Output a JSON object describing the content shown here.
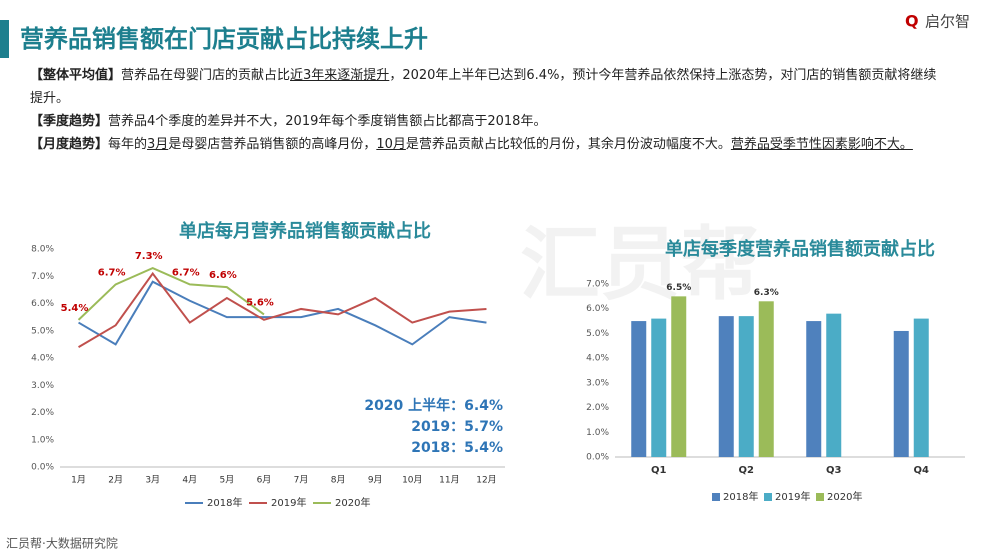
{
  "header": {
    "title": "营养品销售额在门店贡献占比持续上升",
    "logo": "启尔智",
    "watermark": "汇员帮",
    "footer": "汇员帮·大数据研究院"
  },
  "paragraphs": [
    {
      "label": "【整体平均值】",
      "segments": [
        {
          "text": "营养品在母婴门店的贡献占比"
        },
        {
          "text": "近3年来逐渐提升",
          "underline": true
        },
        {
          "text": "，2020年上半年已达到6.4%，预计今年营养品依然保持上涨态势，对门店的销售额贡献将继续提升。"
        }
      ]
    },
    {
      "label": "【季度趋势】",
      "segments": [
        {
          "text": "营养品4个季度的差异并不大，2019年每个季度销售额占比都高于2018年。"
        }
      ]
    },
    {
      "label": "【月度趋势】",
      "segments": [
        {
          "text": "每年的"
        },
        {
          "text": "3月",
          "underline": true
        },
        {
          "text": "是母婴店营养品销售额的高峰月份，"
        },
        {
          "text": "10月",
          "underline": true
        },
        {
          "text": "是营养品贡献占比较低的月份，其余月份波动幅度不大。"
        },
        {
          "text": "营养品受季节性因素影响不大。",
          "underline": true
        }
      ]
    }
  ],
  "chart_data": [
    {
      "type": "line",
      "title": "单店每月营养品销售额贡献占比",
      "categories": [
        "1月",
        "2月",
        "3月",
        "4月",
        "5月",
        "6月",
        "7月",
        "8月",
        "9月",
        "10月",
        "11月",
        "12月"
      ],
      "ylim": [
        0,
        8
      ],
      "yticks": [
        {
          "value": 0,
          "label": "0.0%"
        },
        {
          "value": 1,
          "label": "1.0%"
        },
        {
          "value": 2,
          "label": "2.0%"
        },
        {
          "value": 3,
          "label": "3.0%"
        },
        {
          "value": 4,
          "label": "4.0%"
        },
        {
          "value": 5,
          "label": "5.0%"
        },
        {
          "value": 6,
          "label": "6.0%"
        },
        {
          "value": 7,
          "label": "7.0%"
        },
        {
          "value": 8,
          "label": "8.0%"
        }
      ],
      "series": [
        {
          "name": "2018年",
          "color": "#4a7ebb",
          "values": [
            5.3,
            4.5,
            6.8,
            6.1,
            5.5,
            5.5,
            5.5,
            5.8,
            5.2,
            4.5,
            5.5,
            5.3
          ]
        },
        {
          "name": "2019年",
          "color": "#c0504d",
          "values": [
            4.4,
            5.2,
            7.1,
            5.3,
            6.2,
            5.4,
            5.8,
            5.6,
            6.2,
            5.3,
            5.7,
            5.8
          ]
        },
        {
          "name": "2020年",
          "color": "#9bbb59",
          "values": [
            5.4,
            6.7,
            7.3,
            6.7,
            6.6,
            5.6,
            null,
            null,
            null,
            null,
            null,
            null
          ],
          "value_labels": [
            "5.4%",
            "6.7%",
            "7.3%",
            "6.7%",
            "6.6%",
            "5.6%",
            null,
            null,
            null,
            null,
            null,
            null
          ]
        }
      ],
      "annotations": [
        "2020 上半年：6.4%",
        "2019：5.7%",
        "2018：5.4%"
      ]
    },
    {
      "type": "bar",
      "title": "单店每季度营养品销售额贡献占比",
      "categories": [
        "Q1",
        "Q2",
        "Q3",
        "Q4"
      ],
      "ylim": [
        0,
        7
      ],
      "yticks": [
        {
          "value": 0,
          "label": "0.0%"
        },
        {
          "value": 1,
          "label": "1.0%"
        },
        {
          "value": 2,
          "label": "2.0%"
        },
        {
          "value": 3,
          "label": "3.0%"
        },
        {
          "value": 4,
          "label": "4.0%"
        },
        {
          "value": 5,
          "label": "5.0%"
        },
        {
          "value": 6,
          "label": "6.0%"
        },
        {
          "value": 7,
          "label": "7.0%"
        }
      ],
      "series": [
        {
          "name": "2018年",
          "color": "#4f81bd",
          "values": [
            5.5,
            5.7,
            5.5,
            5.1
          ]
        },
        {
          "name": "2019年",
          "color": "#4bacc6",
          "values": [
            5.6,
            5.7,
            5.8,
            5.6
          ]
        },
        {
          "name": "2020年",
          "color": "#9bbb59",
          "values": [
            6.5,
            6.3,
            null,
            null
          ],
          "value_labels": [
            "6.5%",
            "6.3%",
            null,
            null
          ]
        }
      ]
    }
  ]
}
